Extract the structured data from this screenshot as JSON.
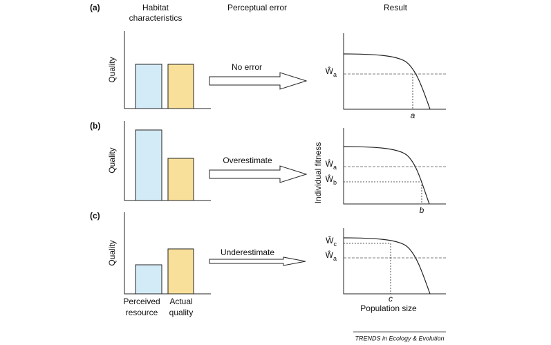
{
  "header": {
    "habitat": [
      "Habitat",
      "characteristics"
    ],
    "perceptual": "Perceptual error",
    "result": "Result"
  },
  "panels": [
    {
      "label": "(a)",
      "y_axis": "Quality",
      "arrow": "No error",
      "w_labels": [
        {
          "symbol": "Ŵ",
          "sub": "a"
        }
      ],
      "x_label": "a"
    },
    {
      "label": "(b)",
      "y_axis": "Quality",
      "arrow": "Overestimate",
      "w_labels": [
        {
          "symbol": "Ŵ",
          "sub": "a"
        },
        {
          "symbol": "Ŵ",
          "sub": "b"
        }
      ],
      "x_label": "b"
    },
    {
      "label": "(c)",
      "y_axis": "Quality",
      "arrow": "Underestimate",
      "w_labels": [
        {
          "symbol": "Ŵ",
          "sub": "c"
        },
        {
          "symbol": "Ŵ",
          "sub": "a"
        }
      ],
      "x_label": "c"
    }
  ],
  "fitness_axis": "Individual fitness",
  "x_axis": "Population size",
  "bar_labels": [
    [
      "Perceived",
      "resource"
    ],
    [
      "Actual",
      "quality"
    ]
  ],
  "footer": "TRENDS in Ecology & Evolution"
}
